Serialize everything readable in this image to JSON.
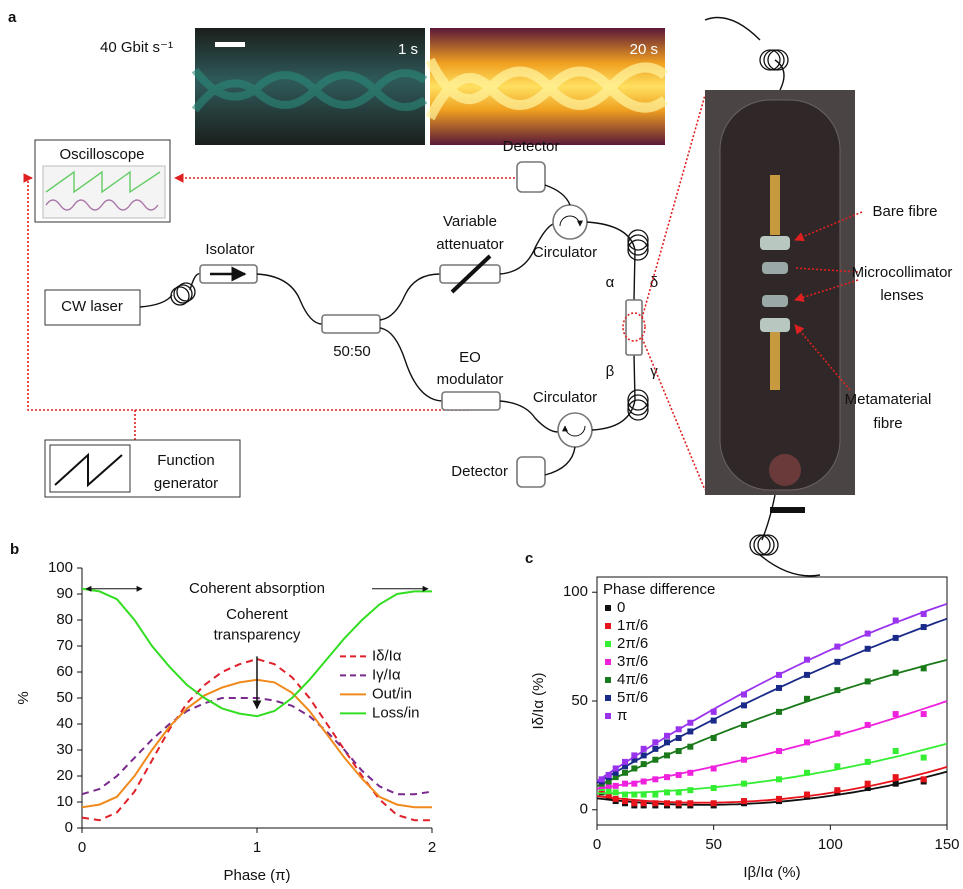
{
  "diagram": {
    "panel_label": "a",
    "bitrate": "40 Gbit s⁻¹",
    "eye_times": [
      "1 s",
      "20 s"
    ],
    "oscilloscope": "Oscilloscope",
    "isolator": "Isolator",
    "cw_laser": "CW laser",
    "splitter": "50:50",
    "attenuator": [
      "Variable",
      "attenuator"
    ],
    "modulator": [
      "EO",
      "modulator"
    ],
    "detectors": [
      "Detector",
      "Detector"
    ],
    "circulators": [
      "Circulator",
      "Circulator"
    ],
    "ports": [
      "α",
      "β",
      "γ",
      "δ"
    ],
    "function_generator": [
      "Function",
      "generator"
    ],
    "photo_labels": {
      "bare_fibre": "Bare fibre",
      "lenses": [
        "Microcollimator",
        "lenses"
      ],
      "metamaterial": [
        "Metamaterial",
        "fibre"
      ]
    }
  },
  "chart_data": [
    {
      "type": "line",
      "panel": "b",
      "xlabel": "Phase (π)",
      "ylabel": "%",
      "absorption_label": "Coherent absorption",
      "transparency_label": [
        "Coherent",
        "transparency"
      ],
      "x": [
        0,
        0.1,
        0.2,
        0.3,
        0.4,
        0.5,
        0.6,
        0.7,
        0.8,
        0.9,
        1,
        1.1,
        1.2,
        1.3,
        1.4,
        1.5,
        1.6,
        1.7,
        1.8,
        1.9,
        2
      ],
      "xlim": [
        0,
        2
      ],
      "xticks": [
        0,
        1,
        2
      ],
      "ylim": [
        0,
        100
      ],
      "yticks": [
        0,
        10,
        20,
        30,
        40,
        50,
        60,
        70,
        80,
        90,
        100
      ],
      "legend": "right",
      "series": [
        {
          "name": "Iδ/Iα",
          "color": "#e0202a",
          "dashed": true,
          "values": [
            4,
            3,
            6,
            14,
            26,
            38,
            48,
            55,
            60,
            63,
            65,
            63,
            58,
            50,
            40,
            30,
            20,
            11,
            5,
            3,
            3
          ]
        },
        {
          "name": "Iγ/Iα",
          "color": "#7a2a8c",
          "dashed": true,
          "values": [
            13,
            15,
            20,
            27,
            34,
            40,
            45,
            48,
            50,
            50,
            50,
            49,
            47,
            43,
            37,
            30,
            22,
            16,
            13,
            13,
            14
          ]
        },
        {
          "name": "Out/in",
          "color": "#f08a1c",
          "dashed": false,
          "values": [
            8,
            9,
            12,
            20,
            30,
            39,
            46,
            51,
            54,
            56,
            57,
            56,
            52,
            45,
            36,
            27,
            19,
            12,
            9,
            8,
            8
          ]
        },
        {
          "name": "Loss/in",
          "color": "#33dd22",
          "dashed": false,
          "values": [
            92,
            91,
            88,
            80,
            70,
            62,
            55,
            50,
            46,
            44,
            43,
            45,
            50,
            57,
            65,
            73,
            80,
            86,
            90,
            91,
            91
          ]
        }
      ]
    },
    {
      "type": "scatter",
      "panel": "c",
      "xlabel": "Iβ/Iα (%)",
      "ylabel": "Iδ/Iα (%)",
      "legend_title": "Phase difference",
      "x": [
        2,
        5,
        8,
        12,
        16,
        20,
        25,
        30,
        35,
        40,
        50,
        63,
        78,
        90,
        103,
        116,
        128,
        140
      ],
      "xlim": [
        0,
        150
      ],
      "xticks": [
        0,
        50,
        100,
        150
      ],
      "ylim": [
        -7,
        107
      ],
      "yticks": [
        0,
        50,
        100
      ],
      "legend": "upper left",
      "fit": true,
      "series": [
        {
          "name": "0",
          "color": "#111111",
          "values": [
            8,
            6,
            4,
            3,
            2,
            2,
            2,
            2,
            2,
            2,
            2,
            3,
            4,
            6,
            8,
            10,
            12,
            13
          ]
        },
        {
          "name": "1π/6",
          "color": "#e8141c",
          "values": [
            9,
            7,
            5,
            4,
            3,
            3,
            3,
            3,
            3,
            3,
            3,
            4,
            5,
            7,
            9,
            12,
            15,
            14
          ]
        },
        {
          "name": "2π/6",
          "color": "#33ee33",
          "values": [
            10,
            9,
            8,
            7,
            7,
            7,
            7,
            8,
            8,
            9,
            10,
            12,
            14,
            17,
            20,
            22,
            27,
            24
          ]
        },
        {
          "name": "3π/6",
          "color": "#ee22dd",
          "values": [
            11,
            11,
            11,
            12,
            12,
            13,
            14,
            15,
            16,
            17,
            19,
            23,
            27,
            31,
            35,
            39,
            44,
            44
          ]
        },
        {
          "name": "4π/6",
          "color": "#1a7a1a",
          "values": [
            12,
            13,
            15,
            17,
            19,
            21,
            23,
            25,
            27,
            29,
            33,
            39,
            45,
            51,
            55,
            59,
            63,
            65
          ]
        },
        {
          "name": "5π/6",
          "color": "#1a2a88",
          "values": [
            13,
            15,
            17,
            20,
            23,
            25,
            28,
            31,
            33,
            36,
            41,
            48,
            56,
            62,
            68,
            74,
            79,
            84
          ]
        },
        {
          "name": "π",
          "color": "#9a33ee",
          "values": [
            14,
            16,
            19,
            22,
            25,
            28,
            31,
            34,
            37,
            40,
            45,
            53,
            62,
            69,
            75,
            81,
            87,
            90
          ]
        }
      ]
    }
  ]
}
